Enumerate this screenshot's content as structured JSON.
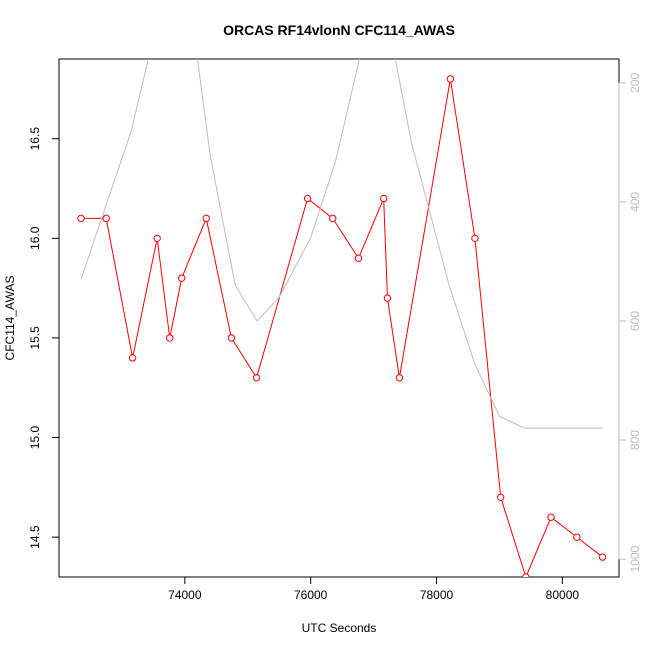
{
  "chart_data": {
    "type": "line",
    "title": "ORCAS RF14vlonN CFC114_AWAS",
    "xlabel": "UTC Seconds",
    "ylabel": "CFC114_AWAS",
    "xlim": [
      72000,
      80900
    ],
    "ylim": [
      14.3,
      16.9
    ],
    "y2lim": [
      1030,
      160
    ],
    "x_ticks": [
      74000,
      76000,
      78000,
      80000
    ],
    "x_tick_labels": [
      "74000",
      "76000",
      "78000",
      "80000"
    ],
    "y_ticks": [
      14.5,
      15.0,
      15.5,
      16.0,
      16.5
    ],
    "y_tick_labels": [
      "14.5",
      "15.0",
      "15.5",
      "16.0",
      "16.5"
    ],
    "y2_ticks": [
      200,
      400,
      600,
      800,
      1000
    ],
    "y2_tick_labels": [
      "200",
      "400",
      "600",
      "800",
      "1000"
    ],
    "grid": false,
    "legend": "none",
    "series": [
      {
        "axis": "left",
        "color": "#ff0000",
        "marker": "open-circle",
        "x": [
          72350,
          72750,
          73170,
          73560,
          73760,
          73950,
          74340,
          74740,
          75140,
          75950,
          76350,
          76760,
          77160,
          77220,
          77410,
          78220,
          78610,
          79020,
          79420,
          79820,
          80230,
          80640
        ],
        "values": [
          16.1,
          16.1,
          15.4,
          16.0,
          15.5,
          15.8,
          16.1,
          15.5,
          15.3,
          16.2,
          16.1,
          15.9,
          16.2,
          15.7,
          15.3,
          16.8,
          16.0,
          14.7,
          14.3,
          14.6,
          14.5,
          14.4
        ]
      },
      {
        "axis": "right",
        "color": "#bebebe",
        "marker": "none",
        "x": [
          72350,
          73150,
          73600,
          74100,
          74400,
          74800,
          75150,
          75500,
          76000,
          76400,
          76950,
          77200,
          77600,
          78200,
          78600,
          79000,
          79400,
          79800,
          80200,
          80640
        ],
        "values": [
          530,
          280,
          80,
          80,
          320,
          540,
          600,
          560,
          460,
          330,
          80,
          80,
          300,
          540,
          670,
          760,
          780,
          780,
          780,
          780
        ]
      }
    ]
  }
}
